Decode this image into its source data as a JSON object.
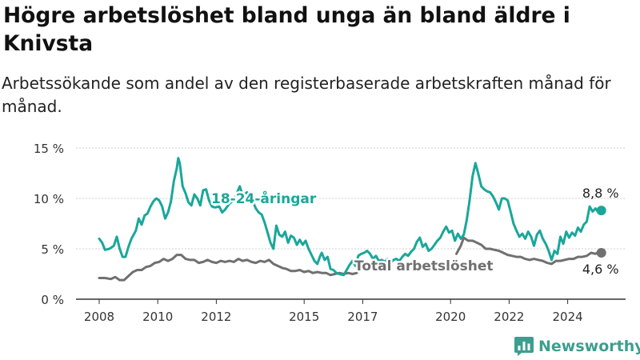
{
  "header": {
    "title": "Högre arbetslöshet bland unga än bland äldre i Knivsta",
    "subtitle": "Arbetssökande som andel av den registerbaserade arbetskraften månad för månad."
  },
  "brand": {
    "name": "Newsworthy",
    "icon": "bar-chart-logo-icon",
    "color": "#3d9e8f"
  },
  "colors": {
    "youth": "#1aa79a",
    "total": "#707070",
    "grid": "#cccccc",
    "axis": "#333333"
  },
  "chart_data": {
    "type": "line",
    "title": "Högre arbetslöshet bland unga än bland äldre i Knivsta",
    "subtitle": "Arbetssökande som andel av den registerbaserade arbetskraften månad för månad.",
    "xlabel": "",
    "ylabel": "",
    "xlim": [
      2007.75,
      2025.45
    ],
    "ylim": [
      0,
      15
    ],
    "yticks": [
      0,
      5,
      10,
      15
    ],
    "ytick_labels": [
      "0 %",
      "5 %",
      "10 %",
      "15 %"
    ],
    "xticks": [
      2008,
      2010,
      2012,
      2015,
      2017,
      2020,
      2022,
      2024
    ],
    "xtick_labels": [
      "2008",
      "2010",
      "2012",
      "2015",
      "2017",
      "2020",
      "2022",
      "2024"
    ],
    "grid": true,
    "series": [
      {
        "name": "18-24-åringar",
        "color": "#1aa79a",
        "end_label": "8,8 %",
        "points": [
          [
            2008.0,
            6.0
          ],
          [
            2008.1,
            5.6
          ],
          [
            2008.2,
            4.9
          ],
          [
            2008.35,
            5.0
          ],
          [
            2008.5,
            5.3
          ],
          [
            2008.6,
            6.2
          ],
          [
            2008.7,
            5.0
          ],
          [
            2008.8,
            4.2
          ],
          [
            2008.9,
            4.2
          ],
          [
            2009.0,
            5.2
          ],
          [
            2009.1,
            6.0
          ],
          [
            2009.25,
            6.8
          ],
          [
            2009.35,
            8.0
          ],
          [
            2009.45,
            7.4
          ],
          [
            2009.55,
            8.3
          ],
          [
            2009.65,
            8.5
          ],
          [
            2009.75,
            9.2
          ],
          [
            2009.85,
            9.7
          ],
          [
            2009.95,
            10.0
          ],
          [
            2010.05,
            9.8
          ],
          [
            2010.15,
            9.2
          ],
          [
            2010.25,
            8.0
          ],
          [
            2010.35,
            8.6
          ],
          [
            2010.45,
            9.7
          ],
          [
            2010.55,
            11.7
          ],
          [
            2010.65,
            13.0
          ],
          [
            2010.7,
            14.0
          ],
          [
            2010.75,
            13.5
          ],
          [
            2010.85,
            11.2
          ],
          [
            2010.95,
            10.5
          ],
          [
            2011.05,
            9.6
          ],
          [
            2011.15,
            9.3
          ],
          [
            2011.25,
            10.4
          ],
          [
            2011.35,
            10.0
          ],
          [
            2011.45,
            9.3
          ],
          [
            2011.55,
            10.8
          ],
          [
            2011.65,
            10.9
          ],
          [
            2011.75,
            9.8
          ],
          [
            2011.85,
            9.2
          ],
          [
            2011.95,
            9.1
          ],
          [
            2012.1,
            9.2
          ],
          [
            2012.2,
            8.6
          ],
          [
            2012.3,
            8.9
          ],
          [
            2012.45,
            9.5
          ],
          [
            2012.6,
            9.8
          ],
          [
            2012.7,
            10.5
          ],
          [
            2012.8,
            11.2
          ],
          [
            2012.9,
            10.3
          ],
          [
            2013.05,
            10.6
          ],
          [
            2013.2,
            10.0
          ],
          [
            2013.35,
            9.0
          ],
          [
            2013.45,
            8.6
          ],
          [
            2013.55,
            8.4
          ],
          [
            2013.65,
            7.6
          ],
          [
            2013.75,
            6.6
          ],
          [
            2013.85,
            5.6
          ],
          [
            2013.95,
            5.0
          ],
          [
            2014.05,
            7.3
          ],
          [
            2014.15,
            6.4
          ],
          [
            2014.25,
            6.2
          ],
          [
            2014.35,
            6.7
          ],
          [
            2014.45,
            5.6
          ],
          [
            2014.55,
            6.3
          ],
          [
            2014.65,
            6.1
          ],
          [
            2014.75,
            5.4
          ],
          [
            2014.85,
            5.9
          ],
          [
            2014.95,
            5.4
          ],
          [
            2015.05,
            5.8
          ],
          [
            2015.15,
            5.0
          ],
          [
            2015.25,
            4.4
          ],
          [
            2015.35,
            3.8
          ],
          [
            2015.45,
            3.5
          ],
          [
            2015.55,
            4.3
          ],
          [
            2015.6,
            4.6
          ],
          [
            2015.7,
            3.9
          ],
          [
            2015.8,
            4.2
          ],
          [
            2015.9,
            3.0
          ],
          [
            2016.0,
            2.9
          ],
          [
            2016.1,
            2.6
          ],
          [
            2016.2,
            2.5
          ],
          [
            2016.35,
            2.4
          ],
          [
            2016.45,
            2.9
          ],
          [
            2016.55,
            3.4
          ],
          [
            2016.65,
            3.8
          ],
          [
            2016.75,
            3.3
          ],
          [
            2016.85,
            4.3
          ],
          [
            2016.95,
            4.5
          ],
          [
            2017.05,
            4.6
          ],
          [
            2017.15,
            4.8
          ],
          [
            2017.25,
            4.5
          ],
          [
            2017.35,
            4.0
          ],
          [
            2017.45,
            4.3
          ],
          [
            2017.55,
            3.8
          ],
          [
            2017.65,
            3.9
          ],
          [
            2017.75,
            3.7
          ],
          [
            2017.85,
            4.0
          ],
          [
            2017.95,
            3.6
          ],
          [
            2018.05,
            3.9
          ],
          [
            2018.15,
            4.0
          ],
          [
            2018.25,
            3.8
          ],
          [
            2018.35,
            4.2
          ],
          [
            2018.45,
            4.5
          ],
          [
            2018.55,
            4.3
          ],
          [
            2018.65,
            4.7
          ],
          [
            2018.75,
            5.0
          ],
          [
            2018.85,
            5.7
          ],
          [
            2018.95,
            6.1
          ],
          [
            2019.05,
            5.2
          ],
          [
            2019.15,
            5.5
          ],
          [
            2019.25,
            4.8
          ],
          [
            2019.35,
            5.0
          ],
          [
            2019.45,
            5.4
          ],
          [
            2019.55,
            5.8
          ],
          [
            2019.65,
            6.1
          ],
          [
            2019.75,
            6.7
          ],
          [
            2019.85,
            7.2
          ],
          [
            2019.95,
            6.6
          ],
          [
            2020.05,
            6.8
          ],
          [
            2020.15,
            5.8
          ],
          [
            2020.25,
            6.5
          ],
          [
            2020.35,
            6.0
          ],
          [
            2020.45,
            6.4
          ],
          [
            2020.55,
            7.8
          ],
          [
            2020.65,
            9.8
          ],
          [
            2020.75,
            12.2
          ],
          [
            2020.85,
            13.5
          ],
          [
            2020.95,
            12.4
          ],
          [
            2021.05,
            11.2
          ],
          [
            2021.15,
            10.9
          ],
          [
            2021.25,
            10.7
          ],
          [
            2021.35,
            10.6
          ],
          [
            2021.45,
            10.2
          ],
          [
            2021.55,
            9.6
          ],
          [
            2021.65,
            8.9
          ],
          [
            2021.75,
            10.0
          ],
          [
            2021.85,
            10.0
          ],
          [
            2021.95,
            9.8
          ],
          [
            2022.05,
            8.7
          ],
          [
            2022.15,
            7.5
          ],
          [
            2022.25,
            6.8
          ],
          [
            2022.35,
            6.2
          ],
          [
            2022.45,
            6.5
          ],
          [
            2022.55,
            6.0
          ],
          [
            2022.65,
            6.7
          ],
          [
            2022.75,
            6.2
          ],
          [
            2022.85,
            5.3
          ],
          [
            2022.95,
            6.4
          ],
          [
            2023.05,
            6.8
          ],
          [
            2023.15,
            6.0
          ],
          [
            2023.25,
            5.5
          ],
          [
            2023.35,
            4.8
          ],
          [
            2023.45,
            3.9
          ],
          [
            2023.55,
            4.8
          ],
          [
            2023.65,
            4.5
          ],
          [
            2023.75,
            6.2
          ],
          [
            2023.85,
            5.5
          ],
          [
            2023.95,
            6.7
          ],
          [
            2024.05,
            6.1
          ],
          [
            2024.15,
            6.6
          ],
          [
            2024.25,
            6.3
          ],
          [
            2024.35,
            7.1
          ],
          [
            2024.45,
            6.7
          ],
          [
            2024.55,
            7.4
          ],
          [
            2024.65,
            7.7
          ],
          [
            2024.75,
            9.2
          ],
          [
            2024.85,
            8.7
          ],
          [
            2024.95,
            9.0
          ],
          [
            2025.05,
            8.6
          ],
          [
            2025.15,
            8.8
          ]
        ]
      },
      {
        "name": "Total arbetslöshet",
        "color": "#707070",
        "end_label": "4,6 %",
        "points": [
          [
            2008.0,
            2.1
          ],
          [
            2008.2,
            2.1
          ],
          [
            2008.4,
            2.0
          ],
          [
            2008.55,
            2.2
          ],
          [
            2008.7,
            1.9
          ],
          [
            2008.85,
            1.9
          ],
          [
            2009.0,
            2.3
          ],
          [
            2009.15,
            2.7
          ],
          [
            2009.3,
            2.9
          ],
          [
            2009.45,
            2.9
          ],
          [
            2009.6,
            3.2
          ],
          [
            2009.75,
            3.3
          ],
          [
            2009.9,
            3.6
          ],
          [
            2010.05,
            3.7
          ],
          [
            2010.2,
            4.0
          ],
          [
            2010.35,
            3.8
          ],
          [
            2010.5,
            4.0
          ],
          [
            2010.65,
            4.4
          ],
          [
            2010.8,
            4.4
          ],
          [
            2010.95,
            4.0
          ],
          [
            2011.1,
            3.9
          ],
          [
            2011.25,
            3.9
          ],
          [
            2011.4,
            3.6
          ],
          [
            2011.55,
            3.7
          ],
          [
            2011.7,
            3.9
          ],
          [
            2011.85,
            3.7
          ],
          [
            2012.0,
            3.6
          ],
          [
            2012.15,
            3.8
          ],
          [
            2012.3,
            3.7
          ],
          [
            2012.45,
            3.8
          ],
          [
            2012.6,
            3.7
          ],
          [
            2012.75,
            4.0
          ],
          [
            2012.9,
            3.8
          ],
          [
            2013.05,
            3.9
          ],
          [
            2013.2,
            3.7
          ],
          [
            2013.35,
            3.6
          ],
          [
            2013.5,
            3.8
          ],
          [
            2013.65,
            3.7
          ],
          [
            2013.8,
            3.9
          ],
          [
            2013.95,
            3.5
          ],
          [
            2014.1,
            3.3
          ],
          [
            2014.25,
            3.1
          ],
          [
            2014.4,
            3.0
          ],
          [
            2014.55,
            2.8
          ],
          [
            2014.7,
            2.8
          ],
          [
            2014.85,
            2.9
          ],
          [
            2015.0,
            2.7
          ],
          [
            2015.15,
            2.8
          ],
          [
            2015.3,
            2.6
          ],
          [
            2015.45,
            2.7
          ],
          [
            2015.6,
            2.6
          ],
          [
            2015.75,
            2.6
          ],
          [
            2015.9,
            2.4
          ],
          [
            2016.05,
            2.5
          ],
          [
            2016.2,
            2.6
          ],
          [
            2016.35,
            2.5
          ],
          [
            2016.5,
            2.6
          ],
          [
            2016.65,
            2.5
          ],
          [
            2016.8,
            2.6
          ],
          [
            2020.2,
            4.5
          ],
          [
            2020.35,
            5.3
          ],
          [
            2020.45,
            6.1
          ],
          [
            2020.6,
            5.8
          ],
          [
            2020.75,
            5.8
          ],
          [
            2020.9,
            5.6
          ],
          [
            2021.05,
            5.4
          ],
          [
            2021.2,
            5.0
          ],
          [
            2021.35,
            5.0
          ],
          [
            2021.5,
            4.9
          ],
          [
            2021.65,
            4.8
          ],
          [
            2021.8,
            4.6
          ],
          [
            2021.95,
            4.4
          ],
          [
            2022.1,
            4.3
          ],
          [
            2022.25,
            4.2
          ],
          [
            2022.4,
            4.2
          ],
          [
            2022.55,
            4.0
          ],
          [
            2022.7,
            3.9
          ],
          [
            2022.85,
            4.0
          ],
          [
            2023.0,
            3.9
          ],
          [
            2023.15,
            3.8
          ],
          [
            2023.3,
            3.6
          ],
          [
            2023.45,
            3.5
          ],
          [
            2023.6,
            3.8
          ],
          [
            2023.75,
            3.8
          ],
          [
            2023.9,
            3.9
          ],
          [
            2024.05,
            4.0
          ],
          [
            2024.2,
            4.0
          ],
          [
            2024.35,
            4.2
          ],
          [
            2024.5,
            4.2
          ],
          [
            2024.65,
            4.3
          ],
          [
            2024.8,
            4.6
          ],
          [
            2024.95,
            4.5
          ],
          [
            2025.05,
            4.7
          ],
          [
            2025.15,
            4.6
          ]
        ]
      }
    ],
    "annotations": [
      {
        "text": "18-24-åringar",
        "series": 0
      },
      {
        "text": "Total arbetslöshet",
        "series": 1
      }
    ]
  }
}
